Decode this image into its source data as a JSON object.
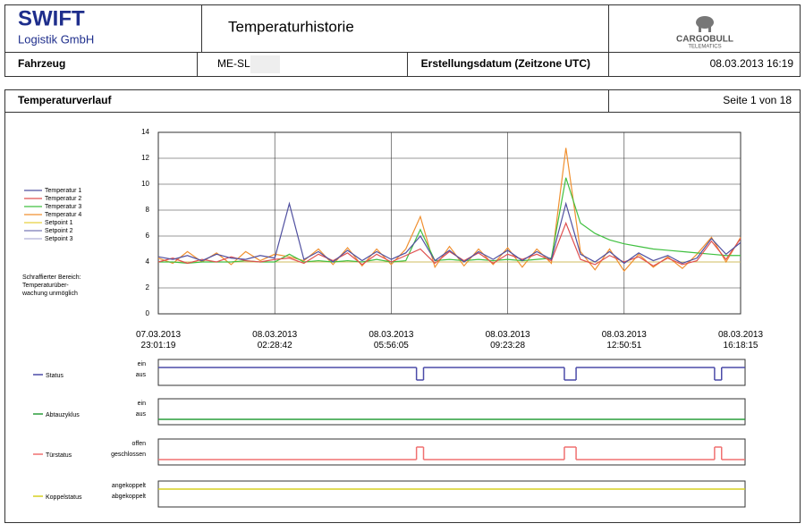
{
  "header": {
    "company": "SWIFT",
    "company_sub": "Logistik GmbH",
    "title": "Temperaturhistorie",
    "logo": "CARGOBULL",
    "logo_sub": "TELEMATICS"
  },
  "info": {
    "vehicle_label": "Fahrzeug",
    "vehicle": "ME-SL",
    "created_label": "Erstellungsdatum (Zeitzone UTC)",
    "created": "08.03.2013 16:19"
  },
  "section": {
    "title": "Temperaturverlauf",
    "page": "Seite 1 von 18"
  },
  "chart_data": {
    "type": "line",
    "ylim": [
      0,
      14
    ],
    "yticks": [
      0,
      2,
      4,
      6,
      8,
      10,
      12,
      14
    ],
    "xlim": [
      0,
      5
    ],
    "xticks": [
      {
        "value": 0,
        "label": "07.03.2013 23:01:19"
      },
      {
        "value": 1,
        "label": "08.03.2013 02:28:42"
      },
      {
        "value": 2,
        "label": "08.03.2013 05:56:05"
      },
      {
        "value": 3,
        "label": "08.03.2013 09:23:28"
      },
      {
        "value": 4,
        "label": "08.03.2013 12:50:51"
      },
      {
        "value": 5,
        "label": "08.03.2013 16:18:15"
      }
    ],
    "grid": true,
    "note": [
      "Schraffierter Bereich:",
      "Temperaturüber-",
      "wachung unmöglich"
    ],
    "series": [
      {
        "name": "Temperatur 1",
        "color": "#5050a0",
        "values": [
          4.4,
          4.2,
          4.5,
          4.1,
          4.6,
          4.3,
          4.2,
          4.5,
          4.3,
          8.5,
          4.2,
          4.8,
          4.0,
          4.9,
          4.1,
          4.8,
          4.2,
          4.7,
          6.0,
          4.1,
          4.9,
          4.0,
          4.8,
          4.2,
          4.9,
          4.1,
          4.8,
          4.2,
          8.5,
          4.6,
          4.0,
          4.8,
          3.9,
          4.7,
          4.1,
          4.5,
          3.9,
          4.3,
          5.8,
          4.6,
          5.5
        ]
      },
      {
        "name": "Temperatur 2",
        "color": "#e05050",
        "values": [
          4.0,
          4.3,
          3.9,
          4.2,
          4.0,
          4.4,
          4.1,
          4.0,
          4.2,
          4.3,
          3.9,
          4.6,
          4.1,
          4.7,
          3.8,
          4.6,
          4.0,
          4.5,
          5.0,
          3.9,
          4.8,
          4.1,
          4.7,
          3.9,
          4.6,
          4.2,
          4.6,
          4.1,
          7.0,
          4.2,
          3.8,
          4.5,
          4.0,
          4.4,
          3.7,
          4.3,
          3.8,
          4.1,
          5.6,
          4.2,
          5.8
        ]
      },
      {
        "name": "Temperatur 3",
        "color": "#40c040",
        "values": [
          4.0,
          4.0,
          3.9,
          4.0,
          4.0,
          4.0,
          4.1,
          4.0,
          4.0,
          4.6,
          4.0,
          4.1,
          4.0,
          4.1,
          4.0,
          4.2,
          4.0,
          4.1,
          6.5,
          4.1,
          4.2,
          4.1,
          4.2,
          4.1,
          4.2,
          4.1,
          4.2,
          4.3,
          10.5,
          7.0,
          6.2,
          5.7,
          5.4,
          5.2,
          5.0,
          4.9,
          4.8,
          4.7,
          4.6,
          4.5,
          4.5
        ]
      },
      {
        "name": "Temperatur 4",
        "color": "#f09030",
        "values": [
          4.3,
          3.9,
          4.8,
          4.0,
          4.7,
          3.8,
          4.8,
          4.1,
          4.6,
          4.4,
          4.1,
          5.0,
          3.8,
          5.1,
          3.7,
          5.0,
          3.8,
          5.0,
          7.5,
          3.6,
          5.2,
          3.7,
          5.0,
          3.8,
          5.1,
          3.6,
          5.0,
          3.9,
          12.8,
          4.8,
          3.4,
          5.0,
          3.3,
          4.6,
          3.6,
          4.4,
          3.5,
          4.6,
          5.9,
          4.0,
          5.9
        ]
      },
      {
        "name": "Setpoint 1",
        "color": "#e8d040",
        "values": [
          4,
          4,
          4,
          4,
          4,
          4,
          4,
          4,
          4,
          4,
          4,
          4,
          4,
          4,
          4,
          4,
          4,
          4,
          4,
          4,
          4,
          4,
          4,
          4,
          4,
          4,
          4,
          4,
          4,
          4,
          4,
          4,
          4,
          4,
          4,
          4,
          4,
          4,
          4,
          4,
          4
        ]
      },
      {
        "name": "Setpoint 2",
        "color": "#7a7ab8",
        "values": [
          4,
          4,
          4,
          4,
          4,
          4,
          4,
          4,
          4,
          4,
          4,
          4,
          4,
          4,
          4,
          4,
          4,
          4,
          4,
          4,
          4,
          4,
          4,
          4,
          4,
          4,
          4,
          4,
          4,
          4,
          4,
          4,
          4,
          4,
          4,
          4,
          4,
          4,
          4,
          4,
          4
        ]
      },
      {
        "name": "Setpoint 3",
        "color": "#b0b0d8",
        "values": [
          4,
          4,
          4,
          4,
          4,
          4,
          4,
          4,
          4,
          4,
          4,
          4,
          4,
          4,
          4,
          4,
          4,
          4,
          4,
          4,
          4,
          4,
          4,
          4,
          4,
          4,
          4,
          4,
          4,
          4,
          4,
          4,
          4,
          4,
          4,
          4,
          4,
          4,
          4,
          4,
          4
        ]
      }
    ]
  },
  "status_charts": [
    {
      "name": "Status",
      "color": "#4b4ba8",
      "levels": [
        "aus",
        "ein"
      ],
      "x": [
        0,
        2.2,
        2.26,
        3.46,
        3.56,
        4.74,
        4.8
      ],
      "values": [
        1,
        0,
        1,
        0,
        1,
        0,
        1
      ]
    },
    {
      "name": "Abtauzyklus",
      "color": "#2a9d3a",
      "levels": [
        "aus",
        "ein"
      ],
      "x": [
        0
      ],
      "values": [
        0
      ]
    },
    {
      "name": "Türstatus",
      "color": "#f07070",
      "levels": [
        "geschlossen",
        "offen"
      ],
      "x": [
        0,
        2.2,
        2.26,
        3.46,
        3.56,
        4.74,
        4.8
      ],
      "values": [
        0,
        1,
        0,
        1,
        0,
        1,
        0
      ]
    },
    {
      "name": "Koppelstatus",
      "color": "#d6d020",
      "levels": [
        "abgekoppelt",
        "angekoppelt"
      ],
      "x": [
        0
      ],
      "values": [
        1
      ]
    }
  ]
}
